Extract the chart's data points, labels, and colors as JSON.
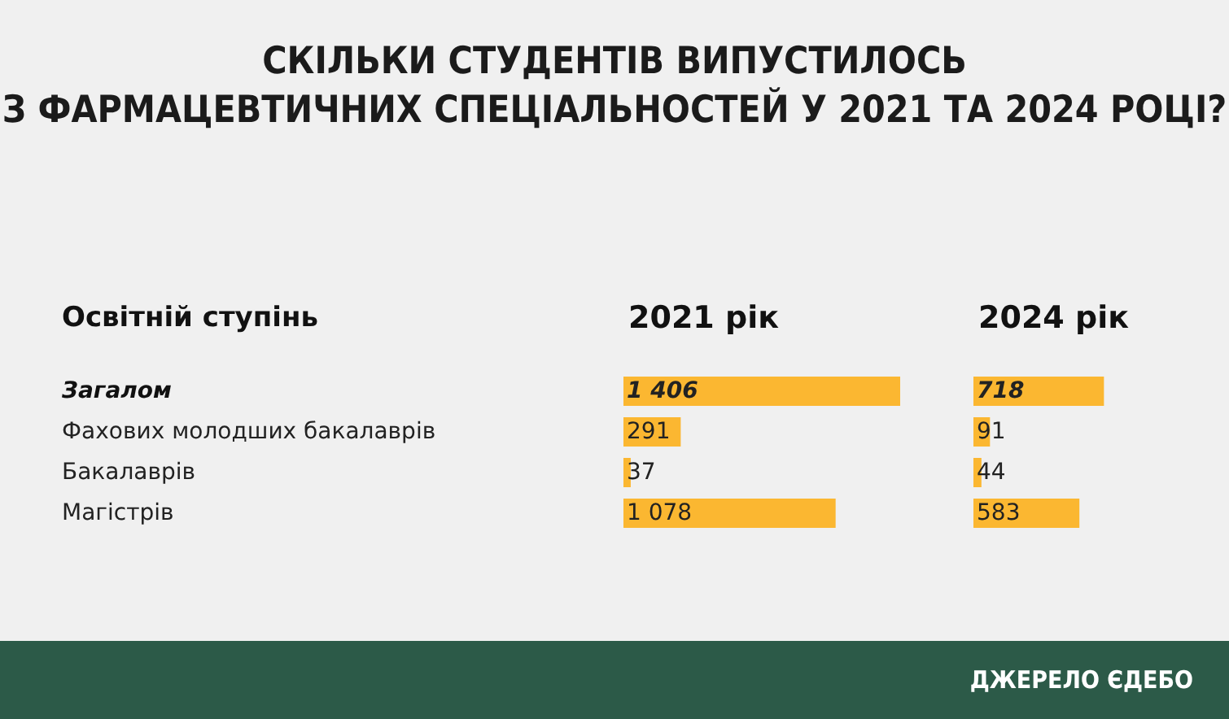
{
  "chart_data": [
    {
      "type": "bar",
      "orientation": "horizontal",
      "title": "СКІЛЬКИ СТУДЕНТІВ ВИПУСТИЛОСЬ\nЗ ФАРМАЦЕВТИЧНИХ СПЕЦІАЛЬНОСТЕЙ У 2021 ТА 2024 РОЦІ?",
      "ylabel": "Освітній ступінь",
      "categories": [
        "Загалом",
        "Фахових молодших бакалаврів",
        "Бакалаврів",
        "Магістрів"
      ],
      "series": [
        {
          "name": "2021 рік",
          "color": "#fbb731",
          "values": [
            1406,
            291,
            37,
            1078
          ],
          "value_labels": [
            "1 406",
            "291",
            "37",
            "1 078"
          ]
        }
      ],
      "xlim": [
        0,
        1406
      ],
      "tick_labels": "y",
      "grid": false,
      "legend": false
    },
    {
      "type": "bar",
      "orientation": "horizontal",
      "categories": [
        null,
        null,
        null,
        null
      ],
      "series": [
        {
          "name": "2024 рік",
          "color": "#fbb731",
          "values": [
            718,
            91,
            44,
            583
          ],
          "value_labels": [
            "718",
            "91",
            "44",
            "583"
          ]
        }
      ],
      "tick_labels": false,
      "grid": false,
      "legend": false,
      "annotations": [
        "ДЖЕРЕЛО ЄДЕБО"
      ]
    }
  ]
}
